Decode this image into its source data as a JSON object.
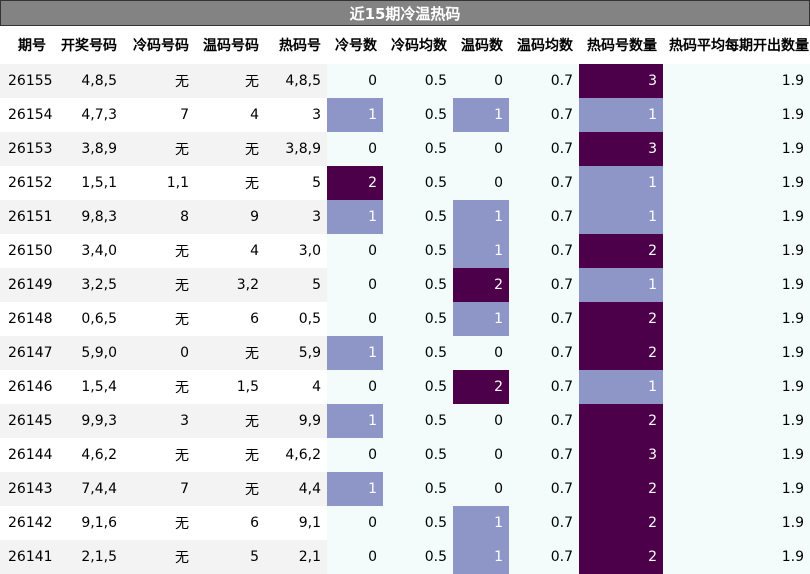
{
  "title": "近15期冷温热码",
  "columns": [
    "期号",
    "开奖号码",
    "冷码号码",
    "温码号码",
    "热码号",
    "冷号数",
    "冷码均数",
    "温码数",
    "温码均数",
    "热码号数量",
    "热码平均每期开出数量"
  ],
  "colors": {
    "title_bg": "#838383",
    "stripe_gray": "#f3f3f3",
    "right_bg": "#f3fbfb",
    "level_1": "#8d96c6",
    "level_2_3": "#4d0049"
  },
  "rows": [
    {
      "issue": "26155",
      "draw": "4,8,5",
      "cold": "无",
      "warm": "无",
      "hot": "4,8,5",
      "cold_n": "0",
      "cold_avg": "0.5",
      "warm_n": "0",
      "warm_avg": "0.7",
      "hot_n": "3",
      "hot_avg": "1.9"
    },
    {
      "issue": "26154",
      "draw": "4,7,3",
      "cold": "7",
      "warm": "4",
      "hot": "3",
      "cold_n": "1",
      "cold_avg": "0.5",
      "warm_n": "1",
      "warm_avg": "0.7",
      "hot_n": "1",
      "hot_avg": "1.9"
    },
    {
      "issue": "26153",
      "draw": "3,8,9",
      "cold": "无",
      "warm": "无",
      "hot": "3,8,9",
      "cold_n": "0",
      "cold_avg": "0.5",
      "warm_n": "0",
      "warm_avg": "0.7",
      "hot_n": "3",
      "hot_avg": "1.9"
    },
    {
      "issue": "26152",
      "draw": "1,5,1",
      "cold": "1,1",
      "warm": "无",
      "hot": "5",
      "cold_n": "2",
      "cold_avg": "0.5",
      "warm_n": "0",
      "warm_avg": "0.7",
      "hot_n": "1",
      "hot_avg": "1.9"
    },
    {
      "issue": "26151",
      "draw": "9,8,3",
      "cold": "8",
      "warm": "9",
      "hot": "3",
      "cold_n": "1",
      "cold_avg": "0.5",
      "warm_n": "1",
      "warm_avg": "0.7",
      "hot_n": "1",
      "hot_avg": "1.9"
    },
    {
      "issue": "26150",
      "draw": "3,4,0",
      "cold": "无",
      "warm": "4",
      "hot": "3,0",
      "cold_n": "0",
      "cold_avg": "0.5",
      "warm_n": "1",
      "warm_avg": "0.7",
      "hot_n": "2",
      "hot_avg": "1.9"
    },
    {
      "issue": "26149",
      "draw": "3,2,5",
      "cold": "无",
      "warm": "3,2",
      "hot": "5",
      "cold_n": "0",
      "cold_avg": "0.5",
      "warm_n": "2",
      "warm_avg": "0.7",
      "hot_n": "1",
      "hot_avg": "1.9"
    },
    {
      "issue": "26148",
      "draw": "0,6,5",
      "cold": "无",
      "warm": "6",
      "hot": "0,5",
      "cold_n": "0",
      "cold_avg": "0.5",
      "warm_n": "1",
      "warm_avg": "0.7",
      "hot_n": "2",
      "hot_avg": "1.9"
    },
    {
      "issue": "26147",
      "draw": "5,9,0",
      "cold": "0",
      "warm": "无",
      "hot": "5,9",
      "cold_n": "1",
      "cold_avg": "0.5",
      "warm_n": "0",
      "warm_avg": "0.7",
      "hot_n": "2",
      "hot_avg": "1.9"
    },
    {
      "issue": "26146",
      "draw": "1,5,4",
      "cold": "无",
      "warm": "1,5",
      "hot": "4",
      "cold_n": "0",
      "cold_avg": "0.5",
      "warm_n": "2",
      "warm_avg": "0.7",
      "hot_n": "1",
      "hot_avg": "1.9"
    },
    {
      "issue": "26145",
      "draw": "9,9,3",
      "cold": "3",
      "warm": "无",
      "hot": "9,9",
      "cold_n": "1",
      "cold_avg": "0.5",
      "warm_n": "0",
      "warm_avg": "0.7",
      "hot_n": "2",
      "hot_avg": "1.9"
    },
    {
      "issue": "26144",
      "draw": "4,6,2",
      "cold": "无",
      "warm": "无",
      "hot": "4,6,2",
      "cold_n": "0",
      "cold_avg": "0.5",
      "warm_n": "0",
      "warm_avg": "0.7",
      "hot_n": "3",
      "hot_avg": "1.9"
    },
    {
      "issue": "26143",
      "draw": "7,4,4",
      "cold": "7",
      "warm": "无",
      "hot": "4,4",
      "cold_n": "1",
      "cold_avg": "0.5",
      "warm_n": "0",
      "warm_avg": "0.7",
      "hot_n": "2",
      "hot_avg": "1.9"
    },
    {
      "issue": "26142",
      "draw": "9,1,6",
      "cold": "无",
      "warm": "6",
      "hot": "9,1",
      "cold_n": "0",
      "cold_avg": "0.5",
      "warm_n": "1",
      "warm_avg": "0.7",
      "hot_n": "2",
      "hot_avg": "1.9"
    },
    {
      "issue": "26141",
      "draw": "2,1,5",
      "cold": "无",
      "warm": "5",
      "hot": "2,1",
      "cold_n": "0",
      "cold_avg": "0.5",
      "warm_n": "1",
      "warm_avg": "0.7",
      "hot_n": "2",
      "hot_avg": "1.9"
    }
  ]
}
